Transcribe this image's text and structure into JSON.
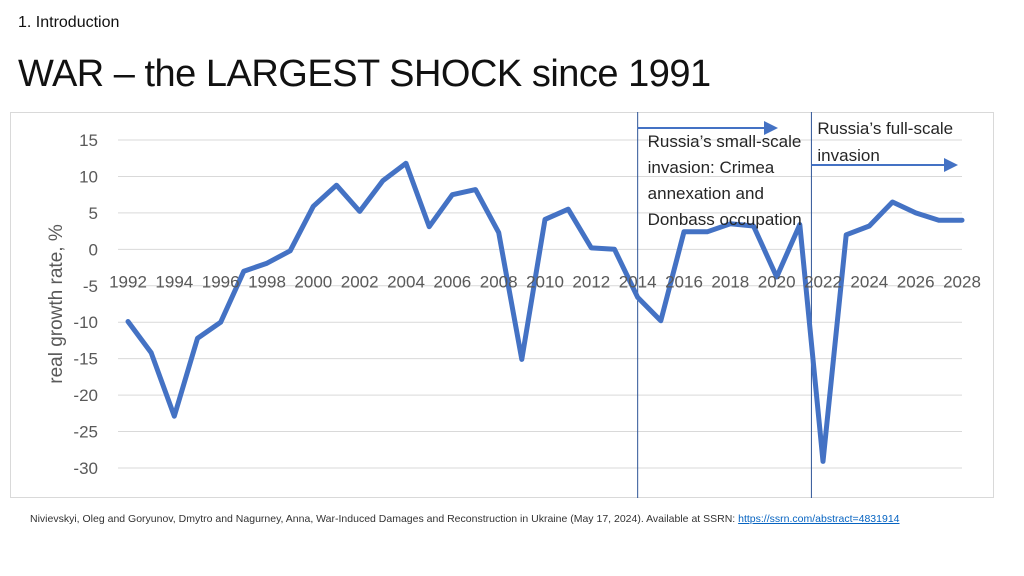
{
  "slide": {
    "section": "1. Introduction",
    "title": "WAR – the LARGEST SHOCK since 1991",
    "source_text": "Nivievskyi, Oleg and Goryunov, Dmytro and Nagurney, Anna, War-Induced Damages and Reconstruction in Ukraine (May 17, 2024). Available at SSRN: ",
    "source_link": "https://ssrn.com/abstract=4831914"
  },
  "colors": {
    "line": "#4472c4",
    "grid": "#d9d9d9",
    "text": "#595959",
    "annotation_text": "#262626",
    "marker_line": "#2e5597"
  },
  "chart_data": {
    "type": "line",
    "title": "",
    "xlabel": "",
    "ylabel": "real growth rate, %",
    "ylim": [
      -30,
      15
    ],
    "yticks": [
      15,
      10,
      5,
      0,
      -5,
      -10,
      -15,
      -20,
      -25,
      -30
    ],
    "xtick_labels": [
      "1992",
      "1994",
      "1996",
      "1998",
      "2000",
      "2002",
      "2004",
      "2006",
      "2008",
      "2010",
      "2012",
      "2014",
      "2016",
      "2018",
      "2020",
      "2022",
      "2024",
      "2026",
      "2028"
    ],
    "grid": true,
    "series": [
      {
        "name": "real growth rate",
        "x": [
          1992,
          1993,
          1994,
          1995,
          1996,
          1997,
          1998,
          1999,
          2000,
          2001,
          2002,
          2003,
          2004,
          2005,
          2006,
          2007,
          2008,
          2009,
          2010,
          2011,
          2012,
          2013,
          2014,
          2015,
          2016,
          2017,
          2018,
          2019,
          2020,
          2021,
          2022,
          2023,
          2024,
          2025,
          2026,
          2027,
          2028
        ],
        "values": [
          -9.9,
          -14.2,
          -22.9,
          -12.2,
          -10,
          -3,
          -1.9,
          -0.2,
          5.9,
          8.8,
          5.2,
          9.4,
          11.8,
          3.1,
          7.5,
          8.2,
          2.3,
          -15.1,
          4.1,
          5.5,
          0.2,
          0,
          -6.6,
          -9.8,
          2.4,
          2.4,
          3.5,
          3.2,
          -3.8,
          3.4,
          -29.1,
          2,
          3.2,
          6.5,
          5,
          4,
          4
        ]
      }
    ],
    "annotations": [
      {
        "year": 2014,
        "label_lines": [
          "Russia’s small-scale",
          "invasion: Crimea",
          "annexation and",
          "Donbass occupation"
        ]
      },
      {
        "year": 2021.5,
        "label_lines": [
          "Russia’s full-scale",
          "invasion"
        ]
      }
    ]
  }
}
